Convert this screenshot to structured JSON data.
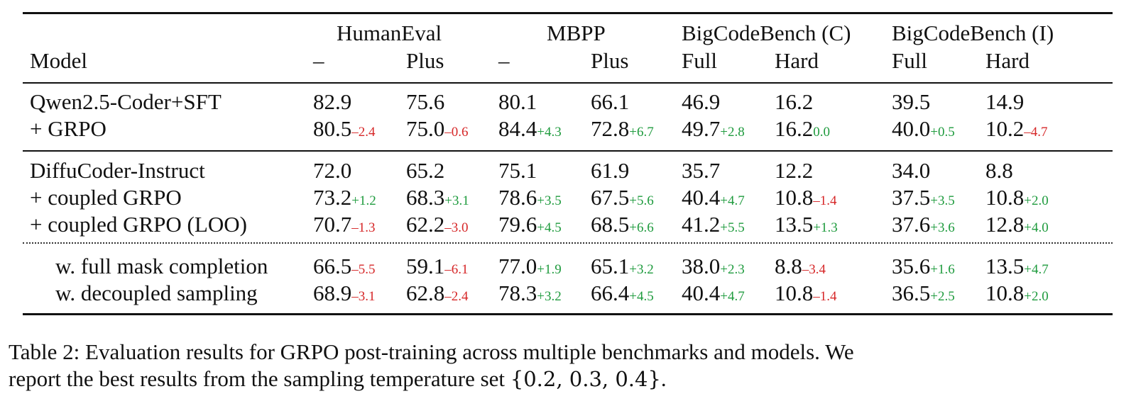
{
  "table": {
    "groups": [
      "HumanEval",
      "MBPP",
      "BigCodeBench (C)",
      "BigCodeBench (I)"
    ],
    "model_header": "Model",
    "subheaders": [
      "–",
      "Plus",
      "–",
      "Plus",
      "Full",
      "Hard",
      "Full",
      "Hard"
    ],
    "colors": {
      "negative": "#d62728",
      "positive": "#1f9b3e"
    },
    "rows": [
      {
        "label": "Qwen2.5-Coder+SFT",
        "indent": false,
        "cells": [
          {
            "v": "82.9",
            "d": ""
          },
          {
            "v": "75.6",
            "d": ""
          },
          {
            "v": "80.1",
            "d": ""
          },
          {
            "v": "66.1",
            "d": ""
          },
          {
            "v": "46.9",
            "d": ""
          },
          {
            "v": "16.2",
            "d": ""
          },
          {
            "v": "39.5",
            "d": ""
          },
          {
            "v": "14.9",
            "d": ""
          }
        ]
      },
      {
        "label": "+ GRPO",
        "indent": false,
        "cells": [
          {
            "v": "80.5",
            "d": "–2.4"
          },
          {
            "v": "75.0",
            "d": "–0.6"
          },
          {
            "v": "84.4",
            "d": "+4.3"
          },
          {
            "v": "72.8",
            "d": "+6.7"
          },
          {
            "v": "49.7",
            "d": "+2.8"
          },
          {
            "v": "16.2",
            "d": "0.0"
          },
          {
            "v": "40.0",
            "d": "+0.5"
          },
          {
            "v": "10.2",
            "d": "–4.7"
          }
        ]
      },
      {
        "label": "DiffuCoder-Instruct",
        "indent": false,
        "cells": [
          {
            "v": "72.0",
            "d": ""
          },
          {
            "v": "65.2",
            "d": ""
          },
          {
            "v": "75.1",
            "d": ""
          },
          {
            "v": "61.9",
            "d": ""
          },
          {
            "v": "35.7",
            "d": ""
          },
          {
            "v": "12.2",
            "d": ""
          },
          {
            "v": "34.0",
            "d": ""
          },
          {
            "v": "8.8",
            "d": ""
          }
        ]
      },
      {
        "label": "+ coupled GRPO",
        "indent": false,
        "cells": [
          {
            "v": "73.2",
            "d": "+1.2"
          },
          {
            "v": "68.3",
            "d": "+3.1"
          },
          {
            "v": "78.6",
            "d": "+3.5"
          },
          {
            "v": "67.5",
            "d": "+5.6"
          },
          {
            "v": "40.4",
            "d": "+4.7"
          },
          {
            "v": "10.8",
            "d": "–1.4"
          },
          {
            "v": "37.5",
            "d": "+3.5"
          },
          {
            "v": "10.8",
            "d": "+2.0"
          }
        ]
      },
      {
        "label": "+ coupled GRPO (LOO)",
        "indent": false,
        "cells": [
          {
            "v": "70.7",
            "d": "–1.3"
          },
          {
            "v": "62.2",
            "d": "–3.0"
          },
          {
            "v": "79.6",
            "d": "+4.5"
          },
          {
            "v": "68.5",
            "d": "+6.6"
          },
          {
            "v": "41.2",
            "d": "+5.5"
          },
          {
            "v": "13.5",
            "d": "+1.3"
          },
          {
            "v": "37.6",
            "d": "+3.6"
          },
          {
            "v": "12.8",
            "d": "+4.0"
          }
        ]
      },
      {
        "label": "w. full mask completion",
        "indent": true,
        "cells": [
          {
            "v": "66.5",
            "d": "–5.5"
          },
          {
            "v": "59.1",
            "d": "–6.1"
          },
          {
            "v": "77.0",
            "d": "+1.9"
          },
          {
            "v": "65.1",
            "d": "+3.2"
          },
          {
            "v": "38.0",
            "d": "+2.3"
          },
          {
            "v": "8.8",
            "d": "–3.4"
          },
          {
            "v": "35.6",
            "d": "+1.6"
          },
          {
            "v": "13.5",
            "d": "+4.7"
          }
        ]
      },
      {
        "label": "w. decoupled sampling",
        "indent": true,
        "cells": [
          {
            "v": "68.9",
            "d": "–3.1"
          },
          {
            "v": "62.8",
            "d": "–2.4"
          },
          {
            "v": "78.3",
            "d": "+3.2"
          },
          {
            "v": "66.4",
            "d": "+4.5"
          },
          {
            "v": "40.4",
            "d": "+4.7"
          },
          {
            "v": "10.8",
            "d": "–1.4"
          },
          {
            "v": "36.5",
            "d": "+2.5"
          },
          {
            "v": "10.8",
            "d": "+2.0"
          }
        ]
      }
    ]
  },
  "caption": {
    "line1": "Table 2: Evaluation results for GRPO post-training across multiple benchmarks and models. We",
    "line2_text": "report the best results from the sampling temperature set ",
    "line2_math": "{0.2, 0.3, 0.4}",
    "line2_end": "."
  }
}
